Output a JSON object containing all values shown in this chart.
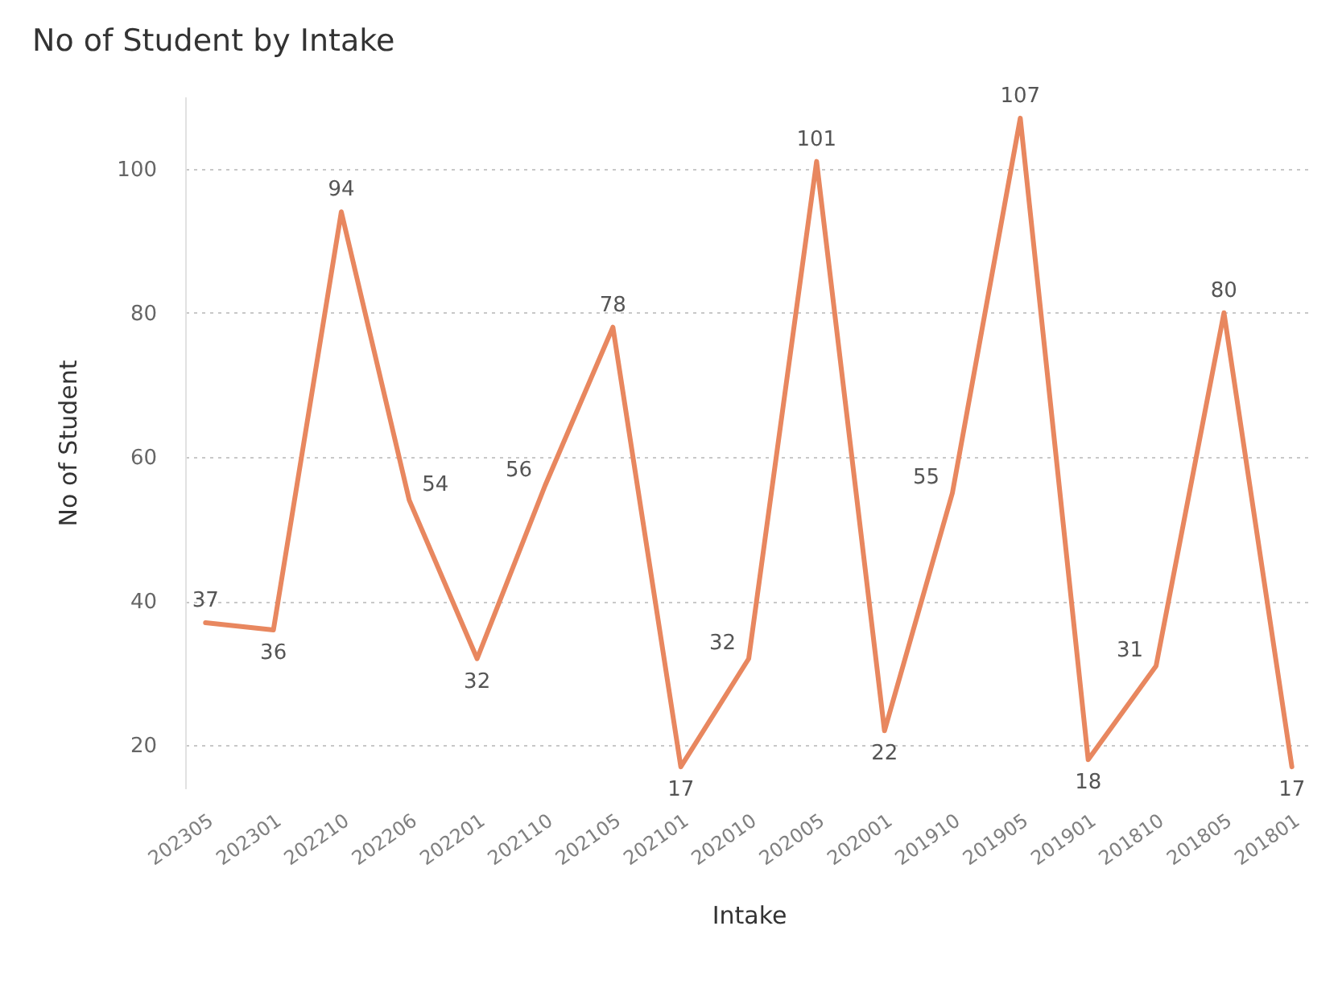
{
  "chart_data": {
    "type": "line",
    "title": "No of Student by Intake",
    "xlabel": "Intake",
    "ylabel": "No of Student",
    "categories": [
      "202305",
      "202301",
      "202210",
      "202206",
      "202201",
      "202110",
      "202105",
      "202101",
      "202010",
      "202005",
      "202001",
      "201910",
      "201905",
      "201901",
      "201810",
      "201805",
      "201801"
    ],
    "series": [
      {
        "color": "#e8875f",
        "values": [
          37,
          36,
          94,
          54,
          32,
          56,
          78,
          17,
          32,
          101,
          22,
          55,
          107,
          18,
          31,
          80,
          17
        ]
      }
    ],
    "ylim": [
      14,
      110
    ],
    "yticks": [
      20,
      40,
      60,
      80,
      100
    ],
    "grid": "y",
    "data_labels": true
  }
}
